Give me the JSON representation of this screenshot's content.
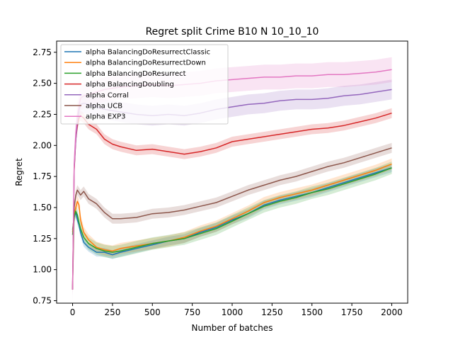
{
  "chart_data": {
    "type": "line",
    "title": "Regret split Crime B10 N 10_10_10",
    "xlabel": "Number of batches",
    "ylabel": "Regret",
    "xlim": [
      -100,
      2100
    ],
    "ylim": [
      0.73,
      2.84
    ],
    "xticks": [
      0,
      250,
      500,
      750,
      1000,
      1250,
      1500,
      1750,
      2000
    ],
    "yticks": [
      0.75,
      1.0,
      1.25,
      1.5,
      1.75,
      2.0,
      2.25,
      2.5,
      2.75
    ],
    "grid": false,
    "legend_position": "top-left",
    "series": [
      {
        "name": "alpha BalancingDoResurrectClassic",
        "color": "#1f77b4",
        "band": 0.035,
        "x": [
          0,
          10,
          20,
          30,
          40,
          50,
          70,
          100,
          150,
          200,
          250,
          300,
          400,
          500,
          600,
          700,
          800,
          900,
          1000,
          1100,
          1200,
          1300,
          1400,
          1500,
          1600,
          1700,
          1800,
          1900,
          2000
        ],
        "y": [
          1.32,
          1.43,
          1.46,
          1.4,
          1.36,
          1.3,
          1.22,
          1.18,
          1.14,
          1.14,
          1.12,
          1.14,
          1.17,
          1.2,
          1.23,
          1.25,
          1.3,
          1.34,
          1.4,
          1.45,
          1.52,
          1.56,
          1.59,
          1.62,
          1.66,
          1.7,
          1.74,
          1.78,
          1.82
        ]
      },
      {
        "name": "alpha BalancingDoResurrectDown",
        "color": "#ff7f0e",
        "band": 0.045,
        "x": [
          0,
          10,
          20,
          30,
          40,
          50,
          70,
          100,
          150,
          200,
          250,
          300,
          400,
          500,
          600,
          700,
          800,
          900,
          1000,
          1100,
          1200,
          1300,
          1400,
          1500,
          1600,
          1700,
          1800,
          1900,
          2000
        ],
        "y": [
          1.3,
          1.44,
          1.5,
          1.55,
          1.52,
          1.4,
          1.3,
          1.24,
          1.18,
          1.16,
          1.15,
          1.17,
          1.19,
          1.21,
          1.23,
          1.26,
          1.31,
          1.35,
          1.41,
          1.47,
          1.54,
          1.58,
          1.61,
          1.64,
          1.68,
          1.72,
          1.76,
          1.8,
          1.85
        ]
      },
      {
        "name": "alpha BalancingDoResurrect",
        "color": "#2ca02c",
        "band": 0.05,
        "x": [
          0,
          10,
          20,
          30,
          40,
          50,
          70,
          100,
          150,
          200,
          250,
          300,
          400,
          500,
          600,
          700,
          800,
          900,
          1000,
          1100,
          1200,
          1300,
          1400,
          1500,
          1600,
          1700,
          1800,
          1900,
          2000
        ],
        "y": [
          1.28,
          1.42,
          1.47,
          1.44,
          1.38,
          1.33,
          1.26,
          1.21,
          1.17,
          1.15,
          1.14,
          1.15,
          1.18,
          1.21,
          1.23,
          1.25,
          1.29,
          1.33,
          1.39,
          1.45,
          1.51,
          1.55,
          1.58,
          1.62,
          1.65,
          1.69,
          1.73,
          1.77,
          1.82
        ]
      },
      {
        "name": "alpha BalancingDoubling",
        "color": "#d62728",
        "band": 0.04,
        "x": [
          0,
          10,
          20,
          30,
          40,
          50,
          70,
          100,
          150,
          200,
          250,
          300,
          400,
          500,
          600,
          700,
          800,
          900,
          1000,
          1100,
          1200,
          1300,
          1400,
          1500,
          1600,
          1700,
          1800,
          1900,
          2000
        ],
        "y": [
          0.84,
          1.8,
          2.05,
          2.16,
          2.22,
          2.24,
          2.22,
          2.17,
          2.13,
          2.05,
          2.01,
          1.99,
          1.96,
          1.97,
          1.95,
          1.93,
          1.95,
          1.98,
          2.03,
          2.05,
          2.07,
          2.09,
          2.11,
          2.13,
          2.14,
          2.16,
          2.19,
          2.22,
          2.26
        ]
      },
      {
        "name": "alpha Corral",
        "color": "#9467bd",
        "band": 0.08,
        "x": [
          0,
          10,
          20,
          30,
          40,
          50,
          70,
          100,
          150,
          200,
          250,
          300,
          400,
          500,
          600,
          700,
          800,
          900,
          1000,
          1100,
          1200,
          1300,
          1400,
          1500,
          1600,
          1700,
          1800,
          1900,
          2000
        ],
        "y": [
          0.84,
          1.82,
          2.05,
          2.2,
          2.28,
          2.33,
          2.34,
          2.33,
          2.31,
          2.29,
          2.28,
          2.27,
          2.25,
          2.24,
          2.25,
          2.24,
          2.26,
          2.29,
          2.31,
          2.33,
          2.34,
          2.36,
          2.37,
          2.37,
          2.38,
          2.4,
          2.41,
          2.43,
          2.45
        ]
      },
      {
        "name": "alpha UCB",
        "color": "#8c564b",
        "band": 0.04,
        "x": [
          0,
          10,
          20,
          30,
          40,
          50,
          70,
          100,
          150,
          200,
          250,
          300,
          400,
          500,
          600,
          700,
          800,
          900,
          1000,
          1100,
          1200,
          1300,
          1400,
          1500,
          1600,
          1700,
          1800,
          1900,
          2000
        ],
        "y": [
          0.84,
          1.5,
          1.6,
          1.64,
          1.62,
          1.6,
          1.63,
          1.57,
          1.53,
          1.46,
          1.41,
          1.41,
          1.42,
          1.45,
          1.46,
          1.48,
          1.51,
          1.54,
          1.59,
          1.64,
          1.68,
          1.72,
          1.75,
          1.79,
          1.83,
          1.86,
          1.9,
          1.94,
          1.98
        ]
      },
      {
        "name": "alpha EXP3",
        "color": "#e377c2",
        "band": 0.1,
        "x": [
          0,
          10,
          20,
          30,
          40,
          50,
          70,
          100,
          150,
          200,
          250,
          300,
          400,
          500,
          600,
          700,
          800,
          900,
          1000,
          1100,
          1200,
          1300,
          1400,
          1500,
          1600,
          1700,
          1800,
          1900,
          2000
        ],
        "y": [
          0.84,
          1.85,
          2.1,
          2.24,
          2.32,
          2.38,
          2.4,
          2.41,
          2.43,
          2.45,
          2.46,
          2.47,
          2.48,
          2.49,
          2.48,
          2.49,
          2.5,
          2.52,
          2.53,
          2.54,
          2.55,
          2.55,
          2.56,
          2.56,
          2.57,
          2.57,
          2.58,
          2.59,
          2.61
        ]
      }
    ]
  }
}
